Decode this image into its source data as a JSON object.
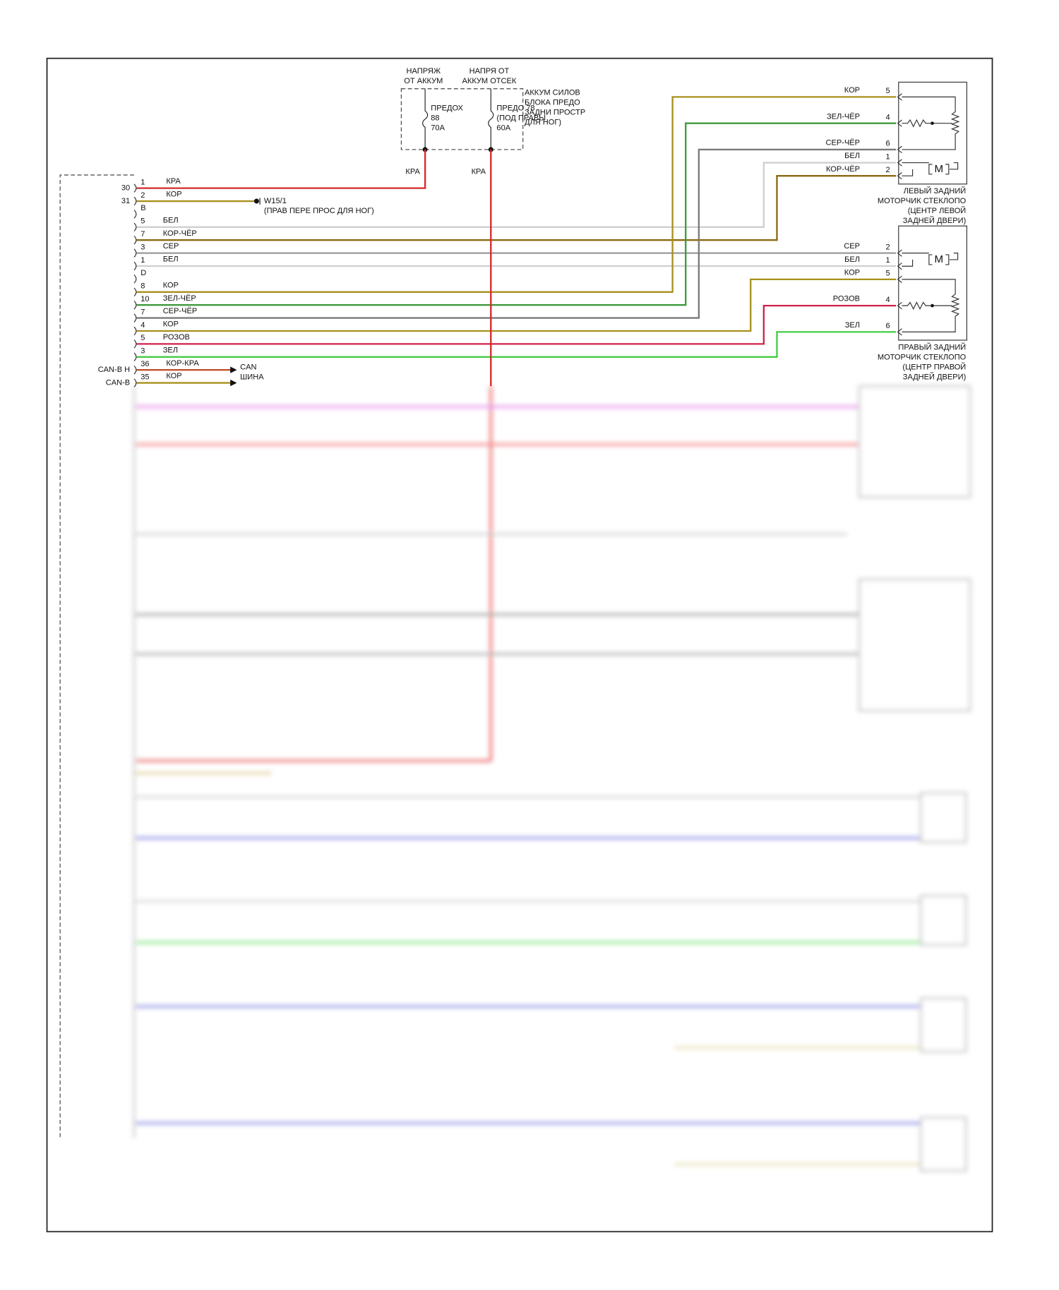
{
  "supplies": [
    {
      "title": [
        "НАПРЯЖ",
        "ОТ АККУМ"
      ],
      "fuse": [
        "ПРЕДОХ",
        "88",
        "70А"
      ],
      "wire_label": "КРА"
    },
    {
      "title": [
        "НАПРЯ ОТ",
        "АККУМ ОТСЕК"
      ],
      "fuse": [
        "ПРЕДО 78",
        "(ПОД ПРАВЫ",
        "60А"
      ],
      "wire_label": "КРА"
    }
  ],
  "fuse_box_label": [
    "АККУМ СИЛОВ",
    "БЛОКА ПРЕДО",
    "ЗАДНИ ПРОСТР",
    "ДЛЯ НОГ)"
  ],
  "connector": {
    "pins": [
      {
        "outer": "30",
        "pin": "1",
        "wire": "КРА",
        "color": "#d42a2a"
      },
      {
        "outer": "31",
        "pin": "2",
        "wire": "КОР",
        "color": "#a8901c"
      },
      {
        "pin": "B"
      },
      {
        "pin": "5",
        "wire": "БЕЛ",
        "color": "#cfcfcf"
      },
      {
        "pin": "7",
        "wire": "КОР-ЧЁР",
        "color": "#8a6a12"
      },
      {
        "pin": "3",
        "wire": "СЕР",
        "color": "#9a9a9a"
      },
      {
        "pin": "1",
        "wire": "БЕЛ",
        "color": "#cfcfcf"
      },
      {
        "pin": "D"
      },
      {
        "pin": "8",
        "wire": "КОР",
        "color": "#a8901c"
      },
      {
        "pin": "10",
        "wire": "ЗЕЛ-ЧЁР",
        "color": "#3d9a3d"
      },
      {
        "pin": "7",
        "wire": "СЕР-ЧЁР",
        "color": "#7a7a7a"
      },
      {
        "pin": "4",
        "wire": "КОР",
        "color": "#a8901c"
      },
      {
        "pin": "5",
        "wire": "РОЗОВ",
        "color": "#d0204a"
      },
      {
        "pin": "3",
        "wire": "ЗЕЛ",
        "color": "#44cc44"
      },
      {
        "outer": "CAN-В Н",
        "pin": "36",
        "wire": "КОР-КРА",
        "color": "#c0502a"
      },
      {
        "outer": "CAN-В",
        "pin": "35",
        "wire": "КОР",
        "color": "#a8901c"
      }
    ]
  },
  "ground": {
    "id": "W15/1",
    "location": "(ПРАВ ПЕРЕ ПРОС ДЛЯ НОГ)"
  },
  "can_bus": [
    "CAN",
    "ШИНА"
  ],
  "components": [
    {
      "name": [
        "ЛЕВЫЙ ЗАДНИЙ",
        "МОТОРЧИК СТЕКЛОПО",
        "(ЦЕНТР ЛЕВОЙ",
        "ЗАДНЕЙ ДВЕРИ)"
      ],
      "pins": [
        {
          "pin": "5",
          "wire": "КОР"
        },
        {
          "pin": "4",
          "wire": "ЗЕЛ-ЧЁР"
        },
        {
          "pin": "6",
          "wire": "СЕР-ЧЁР"
        },
        {
          "pin": "1",
          "wire": "БЕЛ"
        },
        {
          "pin": "2",
          "wire": "КОР-ЧЁР"
        }
      ]
    },
    {
      "name": [
        "ПРАВЫЙ ЗАДНИЙ",
        "МОТОРЧИК СТЕКЛОПО",
        "(ЦЕНТР ПРАВОЙ",
        "ЗАДНЕЙ ДВЕРИ)"
      ],
      "pins": [
        {
          "pin": "2",
          "wire": "СЕР"
        },
        {
          "pin": "1",
          "wire": "БЕЛ"
        },
        {
          "pin": "5",
          "wire": "КОР"
        },
        {
          "pin": "4",
          "wire": "РОЗОВ"
        },
        {
          "pin": "6",
          "wire": "ЗЕЛ"
        }
      ]
    }
  ],
  "motor_symbol": "M"
}
